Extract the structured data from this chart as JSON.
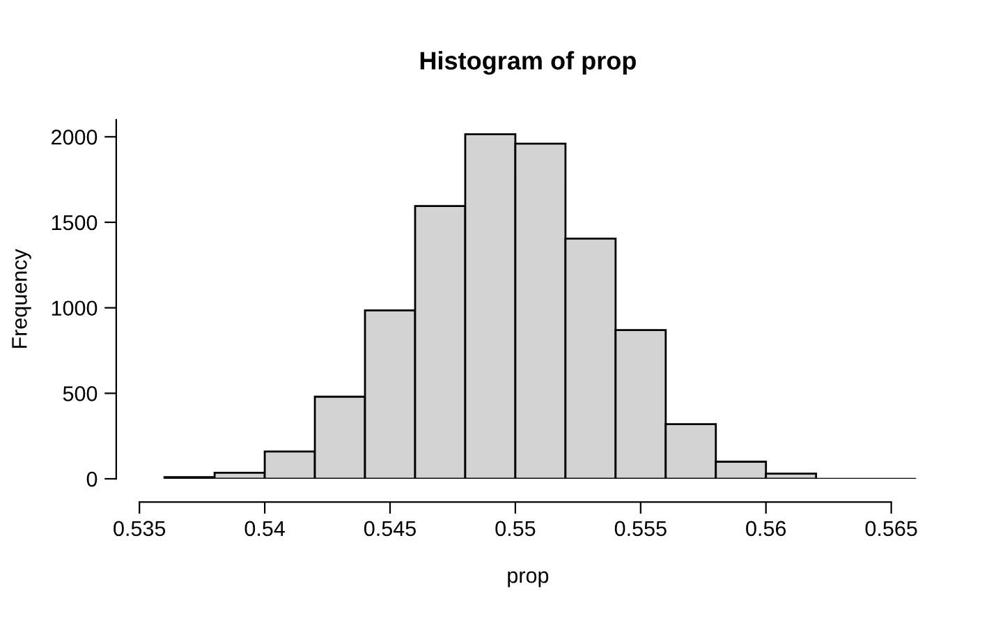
{
  "chart_data": {
    "type": "histogram",
    "title": "Histogram of prop",
    "xlabel": "prop",
    "ylabel": "Frequency",
    "bins": [
      0.536,
      0.538,
      0.54,
      0.542,
      0.544,
      0.546,
      0.548,
      0.55,
      0.552,
      0.554,
      0.556,
      0.558,
      0.56,
      0.562,
      0.564,
      0.566
    ],
    "values": [
      10,
      35,
      160,
      480,
      985,
      1595,
      2015,
      1960,
      1405,
      870,
      320,
      100,
      30,
      0,
      0
    ],
    "color": "#d3d3d3",
    "xlim": [
      0.535,
      0.566
    ],
    "ylim": [
      0,
      2100
    ],
    "xticks": [
      0.535,
      0.54,
      0.545,
      0.55,
      0.555,
      0.56,
      0.565
    ],
    "yticks": [
      0,
      500,
      1000,
      1500,
      2000
    ],
    "grid": false
  }
}
